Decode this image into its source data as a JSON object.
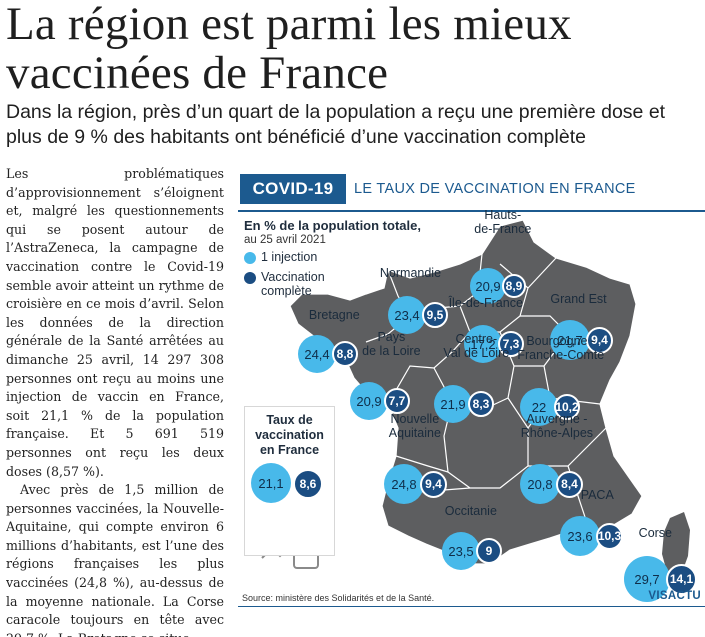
{
  "headline": "La région est parmi les mieux vaccinées de France",
  "subhead": "Dans la région, près d’un quart de la population a reçu une première dose et plus de 9 % des habitants ont bénéficié d’une vaccination complète",
  "article": {
    "p1": "Les problématiques d’approvisionnement s’éloignent et, malgré les questionnements qui se posent autour de l’AstraZeneca, la campagne de vaccination contre le Covid-19 semble avoir atteint un rythme de croisière en ce mois d’avril. Selon les données de la direction générale de la Santé arrêtées au dimanche 25 avril, 14 297 308 personnes ont reçu au moins une injection de vaccin en France, soit 21,1 % de la population française. Et 5 691 519 personnes ont reçu les deux doses (8,57 %).",
    "p2": "Avec près de 1,5 million de personnes vaccinées, la Nouvelle-Aquitaine, qui compte environ 6 millions d’habitants, est l’une des régions françaises les plus vaccinées (24,8 %), au-dessus de la moyenne nationale. La Corse caracole toujours en tête avec 29,7 %. La Bretagne se situe"
  },
  "infographic": {
    "tag": "COVID-19",
    "title": "LE TAUX DE VACCINATION EN FRANCE",
    "legend_title": "En % de la population totale,",
    "legend_date": "au 25 avril 2021",
    "legend_first": "1 injection",
    "legend_complete_1": "Vaccination",
    "legend_complete_2": "complète",
    "colors": {
      "first": "#48b9ea",
      "complete": "#1b4d82",
      "map": "#5d5e60",
      "accent": "#1c5a8f"
    },
    "national": {
      "label_1": "Taux de",
      "label_2": "vaccination",
      "label_3": "en France",
      "first": "21,1",
      "complete": "8,6"
    },
    "regions": [
      {
        "name_1": "Hauts-",
        "name_2": "de-France",
        "first": "20,9",
        "complete": "8,9"
      },
      {
        "name_1": "Normandie",
        "name_2": "",
        "first": "23,4",
        "complete": "9,5"
      },
      {
        "name_1": "Île-de-France",
        "name_2": "",
        "first": "17,2",
        "complete": "7,3"
      },
      {
        "name_1": "Grand Est",
        "name_2": "",
        "first": "21,7",
        "complete": "9,4"
      },
      {
        "name_1": "Bretagne",
        "name_2": "",
        "first": "24,4",
        "complete": "8,8"
      },
      {
        "name_1": "Pays",
        "name_2": "de la Loire",
        "first": "20,9",
        "complete": "7,7"
      },
      {
        "name_1": "Centre-",
        "name_2": "Val de Loire",
        "first": "21,9",
        "complete": "8,3"
      },
      {
        "name_1": "Bourgogne -",
        "name_2": "Franche-Comté",
        "first": "22",
        "complete": "10,2"
      },
      {
        "name_1": "Nouvelle",
        "name_2": "Aquitaine",
        "first": "24,8",
        "complete": "9,4"
      },
      {
        "name_1": "Auvergne -",
        "name_2": "Rhône-Alpes",
        "first": "20,8",
        "complete": "8,4"
      },
      {
        "name_1": "Occitanie",
        "name_2": "",
        "first": "23,5",
        "complete": "9"
      },
      {
        "name_1": "PACA",
        "name_2": "",
        "first": "23,6",
        "complete": "10,3"
      },
      {
        "name_1": "Corse",
        "name_2": "",
        "first": "29,7",
        "complete": "14,1"
      }
    ],
    "source": "Source: ministère des Solidarités et de la Santé.",
    "brand": "VISACTU"
  }
}
